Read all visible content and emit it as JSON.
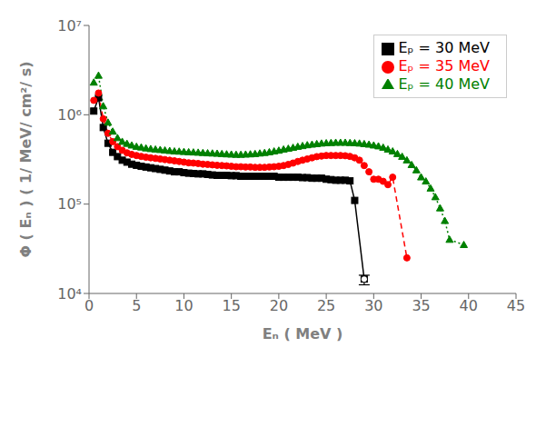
{
  "chart_data": {
    "type": "line",
    "x_label": "Eₙ ( MeV )",
    "y_label": "Φ ( Eₙ ) ( 1/ MeV/ cm²/ s)",
    "log": "y",
    "grid": false,
    "legend": "upper right",
    "xlim": [
      0,
      45
    ],
    "ylim": [
      10000,
      10000000
    ],
    "xticks": [
      0,
      5,
      10,
      15,
      20,
      25,
      30,
      35,
      40,
      45
    ],
    "yticks": [
      {
        "value": 10000,
        "label": "10⁴"
      },
      {
        "value": 100000,
        "label": "10⁵"
      },
      {
        "value": 1000000,
        "label": "10⁶"
      },
      {
        "value": 10000000,
        "label": "10⁷"
      }
    ],
    "series": [
      {
        "name": "Eₚ = 30 MeV",
        "color": "black",
        "line_style": "solid",
        "marker": "square",
        "x": [
          0.5,
          1.0,
          1.5,
          2.0,
          2.5,
          3.0,
          3.5,
          4.0,
          4.5,
          5.0,
          5.5,
          6.0,
          6.5,
          7.0,
          7.5,
          8.0,
          8.5,
          9.0,
          9.5,
          10.0,
          10.5,
          11.0,
          11.5,
          12.0,
          12.5,
          13.0,
          13.5,
          14.0,
          14.5,
          15.0,
          15.5,
          16.0,
          16.5,
          17.0,
          17.5,
          18.0,
          18.5,
          19.0,
          19.5,
          20.0,
          20.5,
          21.0,
          21.5,
          22.0,
          22.5,
          23.0,
          23.5,
          24.0,
          24.5,
          25.0,
          25.5,
          26.0,
          26.5,
          27.0,
          27.5,
          28.0,
          29.0
        ],
        "values": [
          1100000.0,
          1550000.0,
          720000.0,
          480000.0,
          380000.0,
          340000.0,
          310000.0,
          295000.0,
          280000.0,
          272000.0,
          265000.0,
          260000.0,
          255000.0,
          250000.0,
          245000.0,
          240000.0,
          235000.0,
          230000.0,
          230000.0,
          225000.0,
          222000.0,
          220000.0,
          218000.0,
          218000.0,
          215000.0,
          212000.0,
          210000.0,
          210000.0,
          210000.0,
          208000.0,
          208000.0,
          205000.0,
          205000.0,
          205000.0,
          205000.0,
          205000.0,
          205000.0,
          205000.0,
          205000.0,
          200000.0,
          200000.0,
          200000.0,
          200000.0,
          200000.0,
          198000.0,
          198000.0,
          195000.0,
          195000.0,
          195000.0,
          190000.0,
          188000.0,
          185000.0,
          185000.0,
          185000.0,
          182000.0,
          110000.0,
          14500.0
        ],
        "yerr_lo": 2000,
        "yerr_hi": 1500
      },
      {
        "name": "Eₚ = 35 MeV",
        "color": "red",
        "line_style": "dashed",
        "marker": "circle",
        "x": [
          0.5,
          1.0,
          1.5,
          2.0,
          2.5,
          3.0,
          3.5,
          4.0,
          4.5,
          5.0,
          5.5,
          6.0,
          6.5,
          7.0,
          7.5,
          8.0,
          8.5,
          9.0,
          9.5,
          10.0,
          10.5,
          11.0,
          11.5,
          12.0,
          12.5,
          13.0,
          13.5,
          14.0,
          14.5,
          15.0,
          15.5,
          16.0,
          16.5,
          17.0,
          17.5,
          18.0,
          18.5,
          19.0,
          19.5,
          20.0,
          20.5,
          21.0,
          21.5,
          22.0,
          22.5,
          23.0,
          23.5,
          24.0,
          24.5,
          25.0,
          25.5,
          26.0,
          26.5,
          27.0,
          27.5,
          28.0,
          28.5,
          29.0,
          29.5,
          30.0,
          30.5,
          31.0,
          31.5,
          32.0,
          33.5
        ],
        "values": [
          1450000.0,
          1750000.0,
          900000.0,
          620000.0,
          500000.0,
          440000.0,
          400000.0,
          375000.0,
          360000.0,
          350000.0,
          342000.0,
          335000.0,
          330000.0,
          325000.0,
          320000.0,
          315000.0,
          310000.0,
          305000.0,
          300000.0,
          295000.0,
          290000.0,
          288000.0,
          285000.0,
          280000.0,
          278000.0,
          275000.0,
          272000.0,
          270000.0,
          268000.0,
          265000.0,
          262000.0,
          262000.0,
          260000.0,
          260000.0,
          258000.0,
          258000.0,
          258000.0,
          260000.0,
          262000.0,
          265000.0,
          270000.0,
          278000.0,
          288000.0,
          300000.0,
          310000.0,
          320000.0,
          330000.0,
          340000.0,
          345000.0,
          350000.0,
          350000.0,
          350000.0,
          350000.0,
          348000.0,
          342000.0,
          330000.0,
          310000.0,
          270000.0,
          230000.0,
          190000.0,
          190000.0,
          180000.0,
          165000.0,
          200000.0,
          25000.0
        ]
      },
      {
        "name": "Eₚ = 40 MeV",
        "color": "green",
        "line_style": "dotted",
        "marker": "triangle",
        "x": [
          0.5,
          1.0,
          1.5,
          2.0,
          2.5,
          3.0,
          3.5,
          4.0,
          4.5,
          5.0,
          5.5,
          6.0,
          6.5,
          7.0,
          7.5,
          8.0,
          8.5,
          9.0,
          9.5,
          10.0,
          10.5,
          11.0,
          11.5,
          12.0,
          12.5,
          13.0,
          13.5,
          14.0,
          14.5,
          15.0,
          15.5,
          16.0,
          16.5,
          17.0,
          17.5,
          18.0,
          18.5,
          19.0,
          19.5,
          20.0,
          20.5,
          21.0,
          21.5,
          22.0,
          22.5,
          23.0,
          23.5,
          24.0,
          24.5,
          25.0,
          25.5,
          26.0,
          26.5,
          27.0,
          27.5,
          28.0,
          28.5,
          29.0,
          29.5,
          30.0,
          30.5,
          31.0,
          31.5,
          32.0,
          32.5,
          33.0,
          33.5,
          34.0,
          34.5,
          35.0,
          35.5,
          36.0,
          36.5,
          37.0,
          37.5,
          38.0,
          39.5
        ],
        "values": [
          2300000.0,
          2750000.0,
          1250000.0,
          820000.0,
          650000.0,
          550000.0,
          500000.0,
          475000.0,
          455000.0,
          440000.0,
          432000.0,
          422000.0,
          415000.0,
          410000.0,
          405000.0,
          400000.0,
          395000.0,
          390000.0,
          388000.0,
          385000.0,
          382000.0,
          380000.0,
          378000.0,
          375000.0,
          372000.0,
          370000.0,
          368000.0,
          365000.0,
          362000.0,
          360000.0,
          358000.0,
          358000.0,
          360000.0,
          362000.0,
          365000.0,
          370000.0,
          375000.0,
          382000.0,
          390000.0,
          398000.0,
          410000.0,
          418000.0,
          428000.0,
          440000.0,
          448000.0,
          458000.0,
          465000.0,
          472000.0,
          478000.0,
          482000.0,
          485000.0,
          488000.0,
          488000.0,
          488000.0,
          485000.0,
          482000.0,
          478000.0,
          472000.0,
          465000.0,
          455000.0,
          445000.0,
          430000.0,
          410000.0,
          390000.0,
          365000.0,
          340000.0,
          310000.0,
          275000.0,
          240000.0,
          200000.0,
          180000.0,
          150000.0,
          120000.0,
          90000.0,
          65000.0,
          40000.0,
          35000.0
        ]
      }
    ]
  }
}
